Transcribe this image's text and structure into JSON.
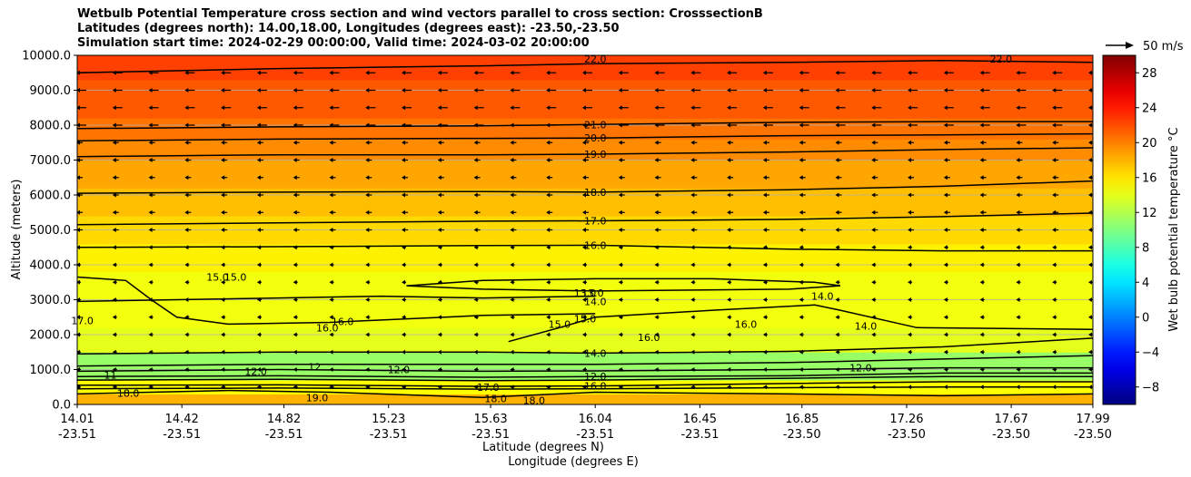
{
  "titles": {
    "line1": "Wetbulb Potential Temperature cross section and wind vectors parallel to cross section: CrosssectionB",
    "line2": "Latitudes (degrees north): 14.00,18.00, Longitudes (degrees east): -23.50,-23.50",
    "line3": "Simulation start time: 2024-02-29 00:00:00, Valid time: 2024-03-02 20:00:00"
  },
  "chart_data": {
    "type": "heatmap",
    "subtype": "filled contour cross-section with contour lines and wind vectors",
    "ylabel": "Altitude (meters)",
    "xlabel_line1": "Latitude (degrees N)",
    "xlabel_line2": "Longitude (degrees E)",
    "ylim": [
      0,
      10000
    ],
    "xlim": [
      14.01,
      17.99
    ],
    "y_ticks": [
      "0.0",
      "1000.0",
      "2000.0",
      "3000.0",
      "4000.0",
      "5000.0",
      "6000.0",
      "7000.0",
      "8000.0",
      "9000.0",
      "10000.0"
    ],
    "y_tick_values": [
      0,
      1000,
      2000,
      3000,
      4000,
      5000,
      6000,
      7000,
      8000,
      9000,
      10000
    ],
    "x_ticks": [
      {
        "value": 14.01,
        "lat": "14.01",
        "lon": "-23.51"
      },
      {
        "value": 14.42,
        "lat": "14.42",
        "lon": "-23.51"
      },
      {
        "value": 14.82,
        "lat": "14.82",
        "lon": "-23.51"
      },
      {
        "value": 15.23,
        "lat": "15.23",
        "lon": "-23.51"
      },
      {
        "value": 15.63,
        "lat": "15.63",
        "lon": "-23.51"
      },
      {
        "value": 16.04,
        "lat": "16.04",
        "lon": "-23.51"
      },
      {
        "value": 16.45,
        "lat": "16.45",
        "lon": "-23.51"
      },
      {
        "value": 16.85,
        "lat": "16.85",
        "lon": "-23.50"
      },
      {
        "value": 17.26,
        "lat": "17.26",
        "lon": "-23.50"
      },
      {
        "value": 17.67,
        "lat": "17.67",
        "lon": "-23.50"
      },
      {
        "value": 17.99,
        "lat": "17.99",
        "lon": "-23.50"
      }
    ],
    "grid": "horizontal only",
    "colorbar": {
      "label": "Wet bulb potential temperature $^\\circ$C",
      "label_text": "Wet bulb potential temperature °C",
      "range": [
        -10,
        30
      ],
      "ticks": [
        "−8",
        "−4",
        "0",
        "4",
        "8",
        "12",
        "16",
        "20",
        "24",
        "28"
      ],
      "tick_values": [
        -8,
        -4,
        0,
        4,
        8,
        12,
        16,
        20,
        24,
        28
      ],
      "colormap": "jet"
    },
    "quiver_key": "50 m/s",
    "background_bands": [
      {
        "from": 0,
        "to": 300,
        "value": 18
      },
      {
        "from": 300,
        "to": 700,
        "value": 15
      },
      {
        "from": 700,
        "to": 1500,
        "value": 11
      },
      {
        "from": 1500,
        "to": 2200,
        "value": 14
      },
      {
        "from": 2200,
        "to": 3800,
        "value": 14.5
      },
      {
        "from": 3800,
        "to": 4600,
        "value": 15.5
      },
      {
        "from": 4600,
        "to": 5400,
        "value": 16.5
      },
      {
        "from": 5400,
        "to": 6200,
        "value": 17.5
      },
      {
        "from": 6200,
        "to": 7000,
        "value": 18.5
      },
      {
        "from": 7000,
        "to": 7600,
        "value": 19.5
      },
      {
        "from": 7600,
        "to": 8200,
        "value": 20.5
      },
      {
        "from": 8200,
        "to": 9300,
        "value": 21.5
      },
      {
        "from": 9300,
        "to": 10000,
        "value": 22.5
      }
    ],
    "contour_lines": [
      {
        "level": "16.0",
        "points": [
          [
            14.01,
            4500
          ],
          [
            14.8,
            4520
          ],
          [
            15.6,
            4550
          ],
          [
            16.04,
            4560
          ],
          [
            16.8,
            4450
          ],
          [
            17.4,
            4400
          ],
          [
            17.99,
            4400
          ]
        ]
      },
      {
        "level": "17.0",
        "points": [
          [
            14.01,
            5150
          ],
          [
            14.8,
            5200
          ],
          [
            15.6,
            5250
          ],
          [
            16.04,
            5260
          ],
          [
            16.8,
            5300
          ],
          [
            17.4,
            5380
          ],
          [
            17.99,
            5480
          ]
        ]
      },
      {
        "level": "18.0",
        "points": [
          [
            14.01,
            6050
          ],
          [
            14.8,
            6080
          ],
          [
            15.6,
            6100
          ],
          [
            16.04,
            6080
          ],
          [
            16.8,
            6150
          ],
          [
            17.4,
            6250
          ],
          [
            17.99,
            6400
          ]
        ]
      },
      {
        "level": "19.0",
        "points": [
          [
            14.01,
            7100
          ],
          [
            14.8,
            7150
          ],
          [
            15.6,
            7150
          ],
          [
            16.04,
            7170
          ],
          [
            16.8,
            7230
          ],
          [
            17.4,
            7300
          ],
          [
            17.99,
            7350
          ]
        ]
      },
      {
        "level": "20.0",
        "points": [
          [
            14.01,
            7550
          ],
          [
            14.8,
            7600
          ],
          [
            15.6,
            7620
          ],
          [
            16.04,
            7630
          ],
          [
            16.8,
            7700
          ],
          [
            17.4,
            7720
          ],
          [
            17.99,
            7750
          ]
        ]
      },
      {
        "level": "21.0",
        "points": [
          [
            14.01,
            7900
          ],
          [
            14.8,
            7950
          ],
          [
            15.6,
            7980
          ],
          [
            16.04,
            8020
          ],
          [
            16.8,
            8080
          ],
          [
            17.4,
            8100
          ],
          [
            17.99,
            8100
          ]
        ]
      },
      {
        "level": "22.0",
        "points": [
          [
            14.01,
            9500
          ],
          [
            14.8,
            9620
          ],
          [
            15.6,
            9700
          ],
          [
            16.04,
            9760
          ],
          [
            16.8,
            9800
          ],
          [
            17.4,
            9850
          ],
          [
            17.99,
            9800
          ]
        ]
      },
      {
        "level": "14.0",
        "points": [
          [
            14.01,
            1450
          ],
          [
            14.8,
            1500
          ],
          [
            15.6,
            1500
          ],
          [
            16.04,
            1470
          ],
          [
            16.8,
            1520
          ],
          [
            17.4,
            1650
          ],
          [
            17.99,
            1900
          ]
        ]
      },
      {
        "level": "15.0",
        "points": [
          [
            14.01,
            3650
          ],
          [
            14.2,
            3550
          ],
          [
            14.3,
            3000
          ],
          [
            14.4,
            2500
          ],
          [
            14.6,
            2300
          ],
          [
            15.0,
            2350
          ],
          [
            15.6,
            2550
          ],
          [
            16.04,
            2600
          ]
        ]
      },
      {
        "level": "",
        "points": [
          [
            14.01,
            2950
          ],
          [
            14.4,
            3000
          ],
          [
            14.8,
            3050
          ],
          [
            15.2,
            3100
          ],
          [
            15.6,
            3050
          ],
          [
            16.04,
            3100
          ]
        ]
      },
      {
        "level": "13.0",
        "points": [
          [
            15.3,
            3400
          ],
          [
            15.6,
            3550
          ],
          [
            16.04,
            3600
          ],
          [
            16.5,
            3600
          ],
          [
            16.9,
            3500
          ],
          [
            17.0,
            3400
          ],
          [
            16.8,
            3300
          ],
          [
            16.04,
            3250
          ],
          [
            15.6,
            3300
          ],
          [
            15.3,
            3400
          ]
        ]
      },
      {
        "level": "14.0",
        "points": [
          [
            15.7,
            1800
          ],
          [
            15.9,
            2200
          ],
          [
            16.04,
            2500
          ],
          [
            16.5,
            2700
          ],
          [
            16.9,
            2850
          ],
          [
            17.0,
            2700
          ],
          [
            17.3,
            2200
          ],
          [
            17.99,
            2150
          ]
        ]
      },
      {
        "level": "",
        "points": [
          [
            14.01,
            1100
          ],
          [
            14.8,
            1150
          ],
          [
            15.6,
            1150
          ],
          [
            16.04,
            1150
          ],
          [
            16.8,
            1200
          ],
          [
            17.4,
            1300
          ],
          [
            17.99,
            1400
          ]
        ]
      },
      {
        "level": "",
        "points": [
          [
            14.01,
            950
          ],
          [
            14.8,
            1000
          ],
          [
            15.6,
            950
          ],
          [
            16.04,
            960
          ],
          [
            16.8,
            1000
          ],
          [
            17.4,
            1050
          ],
          [
            17.99,
            1050
          ]
        ]
      },
      {
        "level": "12.0",
        "points": [
          [
            14.01,
            800
          ],
          [
            14.8,
            820
          ],
          [
            15.6,
            780
          ],
          [
            16.04,
            800
          ],
          [
            16.8,
            820
          ],
          [
            17.4,
            900
          ],
          [
            17.99,
            900
          ]
        ]
      },
      {
        "level": "",
        "points": [
          [
            14.01,
            700
          ],
          [
            14.8,
            720
          ],
          [
            15.6,
            680
          ],
          [
            16.04,
            700
          ],
          [
            16.8,
            750
          ],
          [
            17.4,
            800
          ],
          [
            17.99,
            800
          ]
        ]
      },
      {
        "level": "16.0",
        "points": [
          [
            14.01,
            550
          ],
          [
            14.8,
            560
          ],
          [
            15.6,
            520
          ],
          [
            16.04,
            530
          ],
          [
            16.8,
            600
          ],
          [
            17.4,
            650
          ],
          [
            17.99,
            650
          ]
        ]
      },
      {
        "level": "17.0",
        "points": [
          [
            14.01,
            450
          ],
          [
            14.8,
            470
          ],
          [
            15.6,
            440
          ],
          [
            16.04,
            450
          ],
          [
            16.8,
            480
          ],
          [
            17.4,
            500
          ],
          [
            17.99,
            500
          ]
        ]
      },
      {
        "level": "18.0",
        "points": [
          [
            14.01,
            300
          ],
          [
            14.6,
            400
          ],
          [
            15.0,
            350
          ],
          [
            15.6,
            200
          ],
          [
            16.04,
            350
          ],
          [
            16.8,
            300
          ],
          [
            17.4,
            250
          ],
          [
            17.99,
            300
          ]
        ]
      }
    ],
    "contour_labels": [
      {
        "text": "22.0",
        "x": 16.04,
        "y": 9900
      },
      {
        "text": "22.0",
        "x": 17.63,
        "y": 9900
      },
      {
        "text": "21.0",
        "x": 16.04,
        "y": 8010
      },
      {
        "text": "20.0",
        "x": 16.04,
        "y": 7630
      },
      {
        "text": "19.0",
        "x": 16.04,
        "y": 7170
      },
      {
        "text": "18.0",
        "x": 16.04,
        "y": 6080
      },
      {
        "text": "17.0",
        "x": 16.04,
        "y": 5260
      },
      {
        "text": "16.0",
        "x": 16.04,
        "y": 4560
      },
      {
        "text": "15.0",
        "x": 14.56,
        "y": 3650
      },
      {
        "text": "15.0",
        "x": 14.63,
        "y": 3650
      },
      {
        "text": "17.0",
        "x": 14.03,
        "y": 2400
      },
      {
        "text": "13.0",
        "x": 16.0,
        "y": 3200
      },
      {
        "text": "13.0",
        "x": 16.03,
        "y": 3200
      },
      {
        "text": "14.0",
        "x": 16.04,
        "y": 2950
      },
      {
        "text": "14.0",
        "x": 16.93,
        "y": 3100
      },
      {
        "text": "15.0",
        "x": 15.9,
        "y": 2300
      },
      {
        "text": "15.0",
        "x": 16.0,
        "y": 2450
      },
      {
        "text": "16.0",
        "x": 15.05,
        "y": 2380
      },
      {
        "text": "16.0",
        "x": 14.99,
        "y": 2200
      },
      {
        "text": "16.0",
        "x": 16.25,
        "y": 1920
      },
      {
        "text": "16.0",
        "x": 16.63,
        "y": 2300
      },
      {
        "text": "14.0",
        "x": 17.1,
        "y": 2250
      },
      {
        "text": "14.0",
        "x": 16.04,
        "y": 1470
      },
      {
        "text": "12.0",
        "x": 15.27,
        "y": 1000
      },
      {
        "text": "12",
        "x": 14.94,
        "y": 1080
      },
      {
        "text": "12.0",
        "x": 14.71,
        "y": 950
      },
      {
        "text": "11",
        "x": 14.14,
        "y": 850
      },
      {
        "text": "18.0",
        "x": 14.21,
        "y": 330
      },
      {
        "text": "19.0",
        "x": 14.95,
        "y": 200
      },
      {
        "text": "17.0",
        "x": 15.62,
        "y": 500
      },
      {
        "text": "18.0",
        "x": 15.65,
        "y": 170
      },
      {
        "text": "18.0",
        "x": 15.8,
        "y": 120
      },
      {
        "text": "16.0",
        "x": 16.04,
        "y": 530
      },
      {
        "text": "12.0",
        "x": 16.04,
        "y": 800
      },
      {
        "text": "12.0",
        "x": 17.08,
        "y": 1050
      }
    ]
  }
}
